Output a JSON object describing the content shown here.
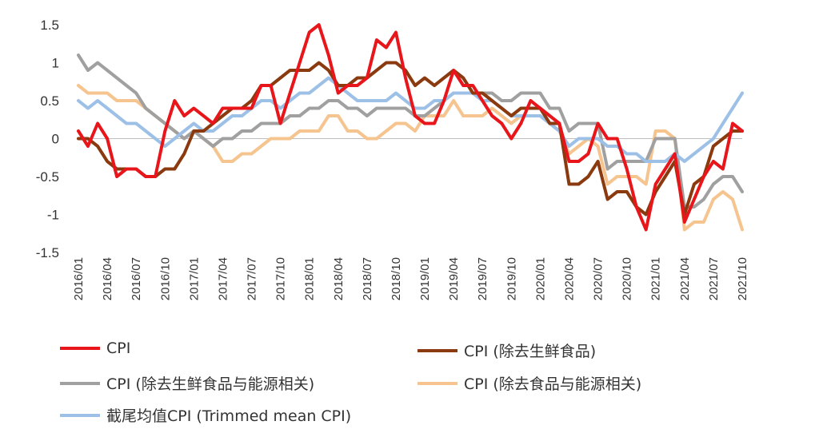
{
  "chart_data": {
    "type": "line",
    "title": "",
    "xlabel": "",
    "ylabel": "",
    "ylim": [
      -1.5,
      1.5
    ],
    "yticks": [
      1.5,
      1,
      0.5,
      0,
      -0.5,
      -1,
      -1.5
    ],
    "ytick_labels": [
      "1.5",
      "1",
      "0.5",
      "0",
      "-0.5",
      "-1",
      "-1.5"
    ],
    "grid": false,
    "legend_position": "bottom",
    "x": [
      "2016/01",
      "2016/02",
      "2016/03",
      "2016/04",
      "2016/05",
      "2016/06",
      "2016/07",
      "2016/08",
      "2016/09",
      "2016/10",
      "2016/11",
      "2016/12",
      "2017/01",
      "2017/02",
      "2017/03",
      "2017/04",
      "2017/05",
      "2017/06",
      "2017/07",
      "2017/08",
      "2017/09",
      "2017/10",
      "2017/11",
      "2017/12",
      "2018/01",
      "2018/02",
      "2018/03",
      "2018/04",
      "2018/05",
      "2018/06",
      "2018/07",
      "2018/08",
      "2018/09",
      "2018/10",
      "2018/11",
      "2018/12",
      "2019/01",
      "2019/02",
      "2019/03",
      "2019/04",
      "2019/05",
      "2019/06",
      "2019/07",
      "2019/08",
      "2019/09",
      "2019/10",
      "2019/11",
      "2019/12",
      "2020/01",
      "2020/02",
      "2020/03",
      "2020/04",
      "2020/05",
      "2020/06",
      "2020/07",
      "2020/08",
      "2020/09",
      "2020/10",
      "2020/11",
      "2020/12",
      "2021/01",
      "2021/02",
      "2021/03",
      "2021/04",
      "2021/05",
      "2021/06",
      "2021/07",
      "2021/08",
      "2021/09",
      "2021/10"
    ],
    "xtick_labels": [
      "2016/01",
      "2016/04",
      "2016/07",
      "2016/10",
      "2017/01",
      "2017/04",
      "2017/07",
      "2017/10",
      "2018/01",
      "2018/04",
      "2018/07",
      "2018/10",
      "2019/01",
      "2019/04",
      "2019/07",
      "2019/10",
      "2020/01",
      "2020/04",
      "2020/07",
      "2020/10",
      "2021/01",
      "2021/04",
      "2021/07",
      "2021/10"
    ],
    "series": [
      {
        "name": "CPI",
        "color": "#e8161b",
        "values": [
          0.1,
          -0.1,
          0.2,
          0.0,
          -0.5,
          -0.4,
          -0.4,
          -0.5,
          -0.5,
          0.1,
          0.5,
          0.3,
          0.4,
          0.3,
          0.2,
          0.4,
          0.4,
          0.4,
          0.4,
          0.7,
          0.7,
          0.2,
          0.6,
          1.0,
          1.4,
          1.5,
          1.1,
          0.6,
          0.7,
          0.7,
          0.8,
          1.3,
          1.2,
          1.4,
          0.8,
          0.3,
          0.2,
          0.2,
          0.5,
          0.9,
          0.7,
          0.7,
          0.5,
          0.3,
          0.2,
          0.0,
          0.2,
          0.5,
          0.4,
          0.3,
          0.2,
          -0.3,
          -0.3,
          -0.2,
          0.2,
          0.0,
          0.0,
          -0.4,
          -0.9,
          -1.2,
          -0.6,
          -0.4,
          -0.2,
          -1.1,
          -0.8,
          -0.5,
          -0.3,
          -0.4,
          0.2,
          0.1
        ]
      },
      {
        "name": "CPI (除去生鲜食品)",
        "color": "#8b3a0f",
        "values": [
          0.0,
          0.0,
          -0.1,
          -0.3,
          -0.4,
          -0.4,
          -0.4,
          -0.5,
          -0.5,
          -0.4,
          -0.4,
          -0.2,
          0.1,
          0.1,
          0.2,
          0.3,
          0.4,
          0.4,
          0.5,
          0.7,
          0.7,
          0.8,
          0.9,
          0.9,
          0.9,
          1.0,
          0.9,
          0.7,
          0.7,
          0.8,
          0.8,
          0.9,
          1.0,
          1.0,
          0.9,
          0.7,
          0.8,
          0.7,
          0.8,
          0.9,
          0.8,
          0.6,
          0.6,
          0.5,
          0.4,
          0.3,
          0.4,
          0.4,
          0.4,
          0.2,
          0.2,
          -0.6,
          -0.6,
          -0.5,
          -0.3,
          -0.8,
          -0.7,
          -0.7,
          -0.9,
          -1.0,
          -0.7,
          -0.5,
          -0.3,
          -1.0,
          -0.6,
          -0.5,
          -0.1,
          0.0,
          0.1,
          0.1
        ]
      },
      {
        "name": "CPI (除去生鲜食品与能源相关)",
        "color": "#a0a0a0",
        "values": [
          1.1,
          0.9,
          1.0,
          0.9,
          0.8,
          0.7,
          0.6,
          0.4,
          0.3,
          0.2,
          0.1,
          0.0,
          0.1,
          0.0,
          -0.1,
          0.0,
          0.0,
          0.1,
          0.1,
          0.2,
          0.2,
          0.2,
          0.3,
          0.3,
          0.4,
          0.4,
          0.5,
          0.5,
          0.4,
          0.4,
          0.3,
          0.4,
          0.4,
          0.4,
          0.4,
          0.3,
          0.3,
          0.4,
          0.5,
          0.6,
          0.6,
          0.6,
          0.6,
          0.6,
          0.5,
          0.5,
          0.6,
          0.6,
          0.6,
          0.4,
          0.4,
          0.1,
          0.2,
          0.2,
          0.2,
          -0.4,
          -0.3,
          -0.3,
          -0.3,
          -0.3,
          0.0,
          0.0,
          0.0,
          -0.9,
          -0.9,
          -0.8,
          -0.6,
          -0.5,
          -0.5,
          -0.7
        ]
      },
      {
        "name": "CPI (除去食品与能源相关)",
        "color": "#f5c48f",
        "values": [
          0.7,
          0.6,
          0.6,
          0.6,
          0.5,
          0.5,
          0.5,
          0.4,
          0.3,
          0.2,
          0.1,
          0.0,
          0.1,
          0.0,
          -0.1,
          -0.3,
          -0.3,
          -0.2,
          -0.2,
          -0.1,
          0.0,
          0.0,
          0.0,
          0.1,
          0.1,
          0.1,
          0.3,
          0.3,
          0.1,
          0.1,
          0.0,
          0.0,
          0.1,
          0.2,
          0.2,
          0.1,
          0.3,
          0.3,
          0.3,
          0.5,
          0.3,
          0.3,
          0.3,
          0.4,
          0.3,
          0.2,
          0.3,
          0.3,
          0.3,
          0.2,
          0.1,
          -0.2,
          -0.1,
          0.0,
          -0.1,
          -0.6,
          -0.5,
          -0.5,
          -0.5,
          -0.6,
          0.1,
          0.1,
          0.0,
          -1.2,
          -1.1,
          -1.1,
          -0.8,
          -0.7,
          -0.8,
          -1.2
        ]
      },
      {
        "name": "截尾均值CPI (Trimmed mean CPI)",
        "color": "#9dc0e6",
        "values": [
          0.5,
          0.4,
          0.5,
          0.4,
          0.3,
          0.2,
          0.2,
          0.1,
          0.0,
          -0.1,
          0.0,
          0.1,
          0.2,
          0.1,
          0.1,
          0.2,
          0.3,
          0.3,
          0.4,
          0.5,
          0.5,
          0.4,
          0.5,
          0.6,
          0.6,
          0.7,
          0.8,
          0.7,
          0.6,
          0.5,
          0.5,
          0.5,
          0.5,
          0.6,
          0.5,
          0.4,
          0.4,
          0.5,
          0.5,
          0.6,
          0.6,
          0.6,
          0.5,
          0.5,
          0.4,
          0.3,
          0.3,
          0.3,
          0.3,
          0.2,
          0.1,
          -0.1,
          0.0,
          0.0,
          0.0,
          -0.1,
          -0.1,
          -0.2,
          -0.2,
          -0.3,
          -0.3,
          -0.3,
          -0.2,
          -0.3,
          -0.2,
          -0.1,
          0.0,
          0.2,
          0.4,
          0.6
        ]
      }
    ]
  }
}
